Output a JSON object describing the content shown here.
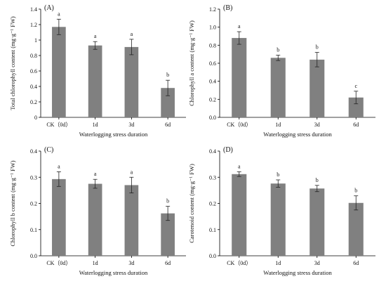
{
  "chart_data": [
    {
      "type": "bar",
      "panel": "(A)",
      "categories": [
        "CK（0d）",
        "1d",
        "3d",
        "6d"
      ],
      "values": [
        1.17,
        0.93,
        0.91,
        0.38
      ],
      "errors": [
        0.1,
        0.05,
        0.1,
        0.1
      ],
      "labels": [
        "a",
        "a",
        "a",
        "b"
      ],
      "xlabel": "Waterlogging stress duration",
      "ylabel": "Total chlorophyll content (mg·g⁻¹ FW)",
      "ylim": [
        0,
        1.4
      ],
      "yticks": [
        "0",
        "0.2",
        "0.4",
        "0.6",
        "0.8",
        "1",
        "1.2",
        "1.4"
      ],
      "bar_color": "#808080"
    },
    {
      "type": "bar",
      "panel": "(B)",
      "categories": [
        "CK（0d）",
        "1d",
        "3d",
        "6d"
      ],
      "values": [
        0.88,
        0.66,
        0.64,
        0.22
      ],
      "errors": [
        0.07,
        0.03,
        0.08,
        0.07
      ],
      "labels": [
        "a",
        "b",
        "b",
        "c"
      ],
      "xlabel": "Waterlogging stress duration",
      "ylabel": "Chlorophyll a content (mg·g⁻¹ FW)",
      "ylim": [
        0,
        1.2
      ],
      "yticks": [
        "0.0",
        "0.2",
        "0.4",
        "0.6",
        "0.8",
        "1.0",
        "1.2"
      ],
      "bar_color": "#808080"
    },
    {
      "type": "bar",
      "panel": "(C)",
      "categories": [
        "CK（0d）",
        "1d",
        "3d",
        "6d"
      ],
      "values": [
        0.293,
        0.275,
        0.27,
        0.162
      ],
      "errors": [
        0.028,
        0.017,
        0.03,
        0.027
      ],
      "labels": [
        "a",
        "a",
        "a",
        "b"
      ],
      "xlabel": "Waterlogging stress duration",
      "ylabel": "Chlorophyll b content (mg·g⁻¹ FW)",
      "ylim": [
        0,
        0.4
      ],
      "yticks": [
        "0.0",
        "0.1",
        "0.2",
        "0.3",
        "0.4"
      ],
      "bar_color": "#808080"
    },
    {
      "type": "bar",
      "panel": "(D)",
      "categories": [
        "CK（0d）",
        "1d",
        "3d",
        "6d"
      ],
      "values": [
        0.312,
        0.276,
        0.257,
        0.202
      ],
      "errors": [
        0.009,
        0.014,
        0.012,
        0.027
      ],
      "labels": [
        "a",
        "b",
        "b",
        "b"
      ],
      "xlabel": "Waterlogging stress duration",
      "ylabel": "Carotenoid content (mg·g⁻¹ FW)",
      "ylim": [
        0,
        0.4
      ],
      "yticks": [
        "0.0",
        "0.1",
        "0.2",
        "0.3",
        "0.4"
      ],
      "bar_color": "#808080"
    }
  ]
}
